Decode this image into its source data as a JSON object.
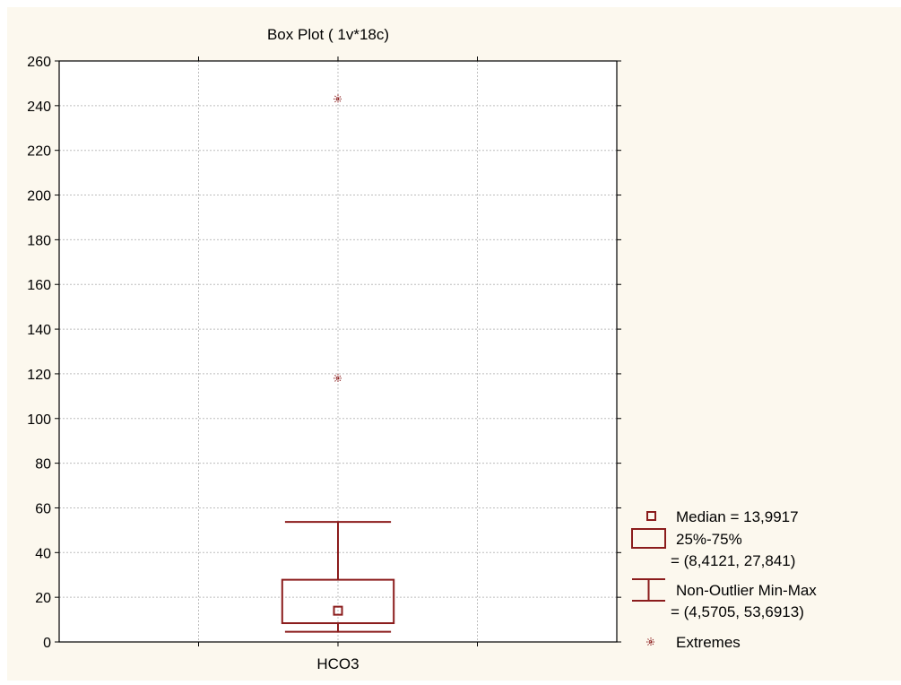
{
  "chart_data": {
    "type": "box",
    "title": "Box Plot ( 1v*18c)",
    "categories": [
      "HCO3"
    ],
    "ylim": [
      0,
      260
    ],
    "yticks": [
      0,
      20,
      40,
      60,
      80,
      100,
      120,
      140,
      160,
      180,
      200,
      220,
      240,
      260
    ],
    "grid": true,
    "series": [
      {
        "name": "HCO3",
        "median": 13.9917,
        "q1": 8.4121,
        "q3": 27.841,
        "whisker_min": 4.5705,
        "whisker_max": 53.6913,
        "extremes": [
          118,
          243
        ]
      }
    ],
    "legend": {
      "position": "bottom-right",
      "entries": [
        {
          "symbol": "median",
          "lines": [
            "Median = 13,9917"
          ]
        },
        {
          "symbol": "box",
          "lines": [
            "25%-75%",
            "= (8,4121, 27,841)"
          ]
        },
        {
          "symbol": "whisker",
          "lines": [
            "Non-Outlier Min-Max",
            "= (4,5705, 53,6913)"
          ]
        },
        {
          "symbol": "extreme",
          "lines": [
            "Extremes"
          ]
        }
      ]
    },
    "colors": {
      "background": "#fcf8ee",
      "plot": "#ffffff",
      "box": "#8b1c1c",
      "grid": "#bdbdbd",
      "axis": "#000000"
    }
  }
}
